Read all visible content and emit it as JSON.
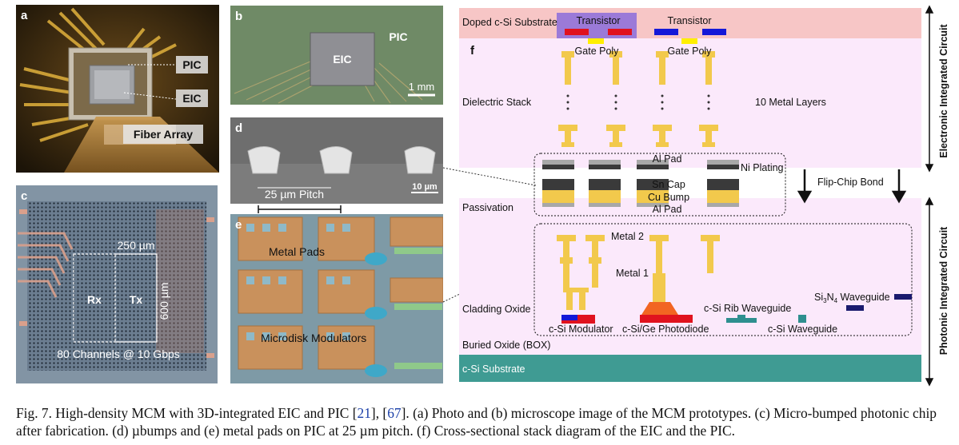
{
  "panels": {
    "a": {
      "label": "a",
      "pic": "PIC",
      "eic": "EIC",
      "fiber": "Fiber Array"
    },
    "b": {
      "label": "b",
      "eic": "EIC",
      "pic": "PIC",
      "scale": "1 mm"
    },
    "c": {
      "label": "c",
      "width": "250 µm",
      "height": "600 µm",
      "rx": "Rx",
      "tx": "Tx",
      "channels": "80 Channels @ 10 Gbps"
    },
    "d": {
      "label": "d",
      "pitch": "25 µm Pitch",
      "scale": "10 µm"
    },
    "e": {
      "label": "e",
      "pads": "Metal Pads",
      "modulators": "Microdisk Modulators"
    },
    "f": {
      "label": "f",
      "doped_substrate": "Doped c-Si Substrate",
      "transistor1": "Transistor",
      "transistor2": "Transistor",
      "gate_poly1": "Gate Poly",
      "gate_poly2": "Gate Poly",
      "dielectric_stack": "Dielectric Stack",
      "metal_layers": "10 Metal Layers",
      "al_pad_top": "Al Pad",
      "ni_plating": "Ni Plating",
      "sn_cap": "Sn Cap",
      "cu_bump": "Cu Bump",
      "al_pad_bottom": "Al Pad",
      "flip_chip": "Flip-Chip Bond",
      "passivation": "Passivation",
      "metal2": "Metal 2",
      "metal1": "Metal 1",
      "cladding": "Cladding Oxide",
      "sin_wg_pre": "Si",
      "sin_wg_sub": "3",
      "sin_wg_mid": "N",
      "sin_wg_sub2": "4",
      "sin_wg_post": " Waveguide",
      "rib_wg": "c-Si Rib Waveguide",
      "modulator": "c-Si Modulator",
      "photodiode": "c-Si/Ge Photodiode",
      "si_wg": "c-Si Waveguide",
      "box": "Buried Oxide (BOX)",
      "substrate": "c-Si Substrate",
      "eic_side": "Electronic Integrated Circuit",
      "pic_side": "Photonic Integrated Circuit"
    }
  },
  "caption": {
    "lead": "Fig. 7.  High-density MCM with 3D-integrated EIC and PIC [",
    "ref1": "21",
    "sep": "], [",
    "ref2": "67",
    "rest": "]. (a) Photo and (b) microscope image of the MCM prototypes. (c) Micro-bumped photonic chip after fabrication. (d) µbumps and (e) metal pads on PIC at 25 µm pitch. (f) Cross-sectional stack diagram of the EIC and the PIC."
  },
  "colors": {
    "doped_substrate": "#f7c6c6",
    "eic_bg": "#fbe9fb",
    "substrate": "#3f9b93",
    "metal_gold": "#f2c94c",
    "transistor_purple": "#9b7ad8",
    "red_contact": "#e0121e",
    "blue_contact": "#1418d8",
    "yellow_gate": "#ffef00",
    "navy_wg": "#1a1a6e",
    "teal_wg": "#2e8f8f",
    "pad_dark": "#3a3a3a",
    "pad_gray": "#a8a8a8",
    "photodiode_orange": "#f26522"
  }
}
